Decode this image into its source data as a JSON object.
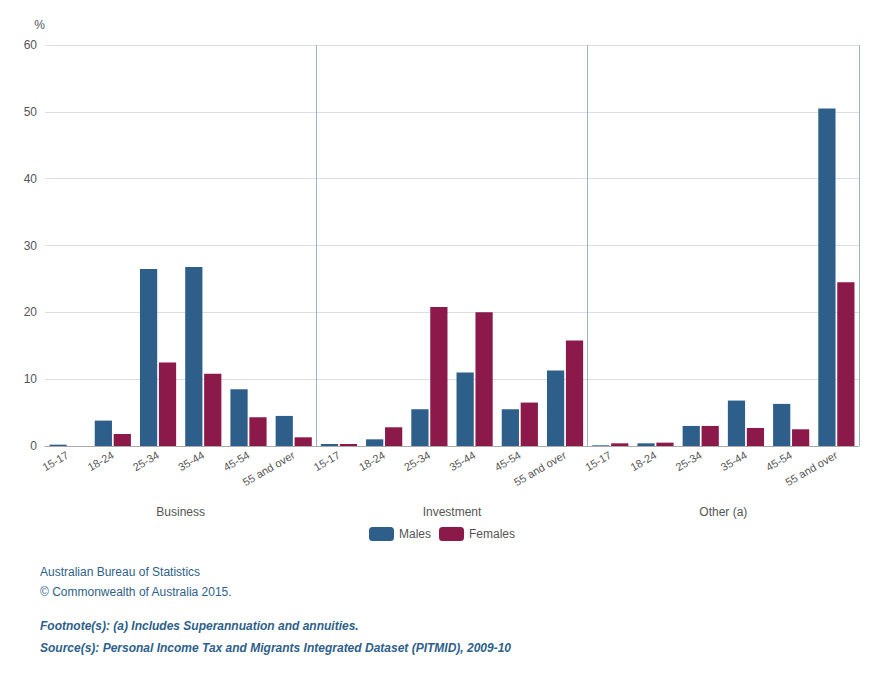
{
  "chart_data": {
    "type": "bar",
    "categories": [
      "15-17",
      "18-24",
      "25-34",
      "35-44",
      "45-54",
      "55 and over",
      "15-17",
      "18-24",
      "25-34",
      "35-44",
      "45-54",
      "55 and over",
      "15-17",
      "18-24",
      "25-34",
      "35-44",
      "45-54",
      "55 and over"
    ],
    "groups": [
      "Business",
      "Investment",
      "Other (a)"
    ],
    "series": [
      {
        "name": "Males",
        "color": "#2E5F8A",
        "values": [
          0.2,
          3.8,
          26.5,
          26.8,
          8.5,
          4.5,
          0.3,
          1.0,
          5.5,
          11.0,
          5.5,
          11.3,
          0.1,
          0.4,
          3.0,
          6.8,
          6.3,
          50.5
        ]
      },
      {
        "name": "Females",
        "color": "#8B1A4A",
        "values": [
          0.0,
          1.8,
          12.5,
          10.8,
          4.3,
          1.3,
          0.3,
          2.8,
          20.8,
          20.0,
          6.5,
          15.8,
          0.4,
          0.5,
          3.0,
          2.7,
          2.5,
          24.5
        ]
      }
    ],
    "ylabel": "%",
    "ylim": [
      0,
      60
    ],
    "yticks": [
      0,
      10,
      20,
      30,
      40,
      50,
      60
    ],
    "grid": true,
    "legend": "bottom",
    "annotations": [
      "Australian Bureau of Statistics",
      "© Commonwealth of Australia 2015.",
      "Footnote(s): (a) Includes Superannuation and annuities.",
      "Source(s): Personal Income Tax and Migrants Integrated Dataset (PITMID), 2009-10"
    ]
  }
}
